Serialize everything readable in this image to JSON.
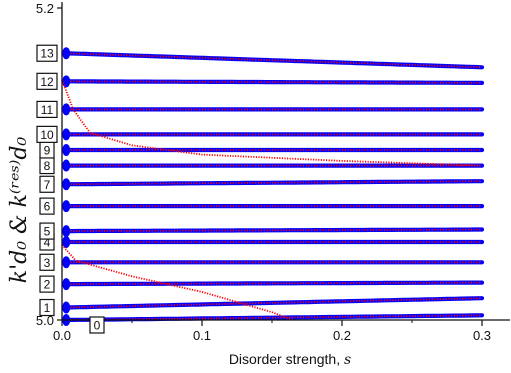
{
  "chart_data": {
    "type": "scatter",
    "xlabel_text": "Disorder strength, ",
    "xlabel_var": "s",
    "ylabel": "k'd₀ & k⁽ʳᵉˢ⁾d₀",
    "xlim": [
      0.0,
      0.32
    ],
    "ylim": [
      5.0,
      5.2
    ],
    "x_ticks": [
      "0.0",
      "0.1",
      "0.2",
      "0.3"
    ],
    "y_ticks": [
      "5.0",
      "5.2"
    ],
    "grid": false,
    "colors": {
      "kprime": "#0000ff",
      "kres": "#ff0000",
      "label_box": "#111111"
    },
    "modes": [
      {
        "label": "0",
        "y0": 5.0,
        "y_end": 5.003
      },
      {
        "label": "1",
        "y0": 5.008,
        "y_end": 5.014
      },
      {
        "label": "2",
        "y0": 5.023,
        "y_end": 5.024
      },
      {
        "label": "3",
        "y0": 5.037,
        "y_end": 5.037
      },
      {
        "label": "4",
        "y0": 5.05,
        "y_end": 5.05
      },
      {
        "label": "5",
        "y0": 5.057,
        "y_end": 5.058
      },
      {
        "label": "6",
        "y0": 5.073,
        "y_end": 5.073
      },
      {
        "label": "7",
        "y0": 5.087,
        "y_end": 5.089
      },
      {
        "label": "8",
        "y0": 5.099,
        "y_end": 5.099
      },
      {
        "label": "9",
        "y0": 5.109,
        "y_end": 5.109
      },
      {
        "label": "10",
        "y0": 5.119,
        "y_end": 5.119
      },
      {
        "label": "11",
        "y0": 5.135,
        "y_end": 5.135
      },
      {
        "label": "12",
        "y0": 5.153,
        "y_end": 5.152
      },
      {
        "label": "13",
        "y0": 5.171,
        "y_end": 5.162
      }
    ],
    "crossing_branches": [
      {
        "name": "red branch from mode 3",
        "points": [
          [
            0.0,
            5.048
          ],
          [
            0.01,
            5.038
          ],
          [
            0.05,
            5.028
          ],
          [
            0.1,
            5.018
          ],
          [
            0.15,
            5.005
          ],
          [
            0.165,
            5.0
          ]
        ]
      },
      {
        "name": "red branch from mode 11",
        "points": [
          [
            0.0,
            5.154
          ],
          [
            0.008,
            5.135
          ],
          [
            0.02,
            5.12
          ],
          [
            0.05,
            5.112
          ],
          [
            0.1,
            5.106
          ],
          [
            0.2,
            5.102
          ],
          [
            0.3,
            5.099
          ]
        ]
      }
    ]
  }
}
